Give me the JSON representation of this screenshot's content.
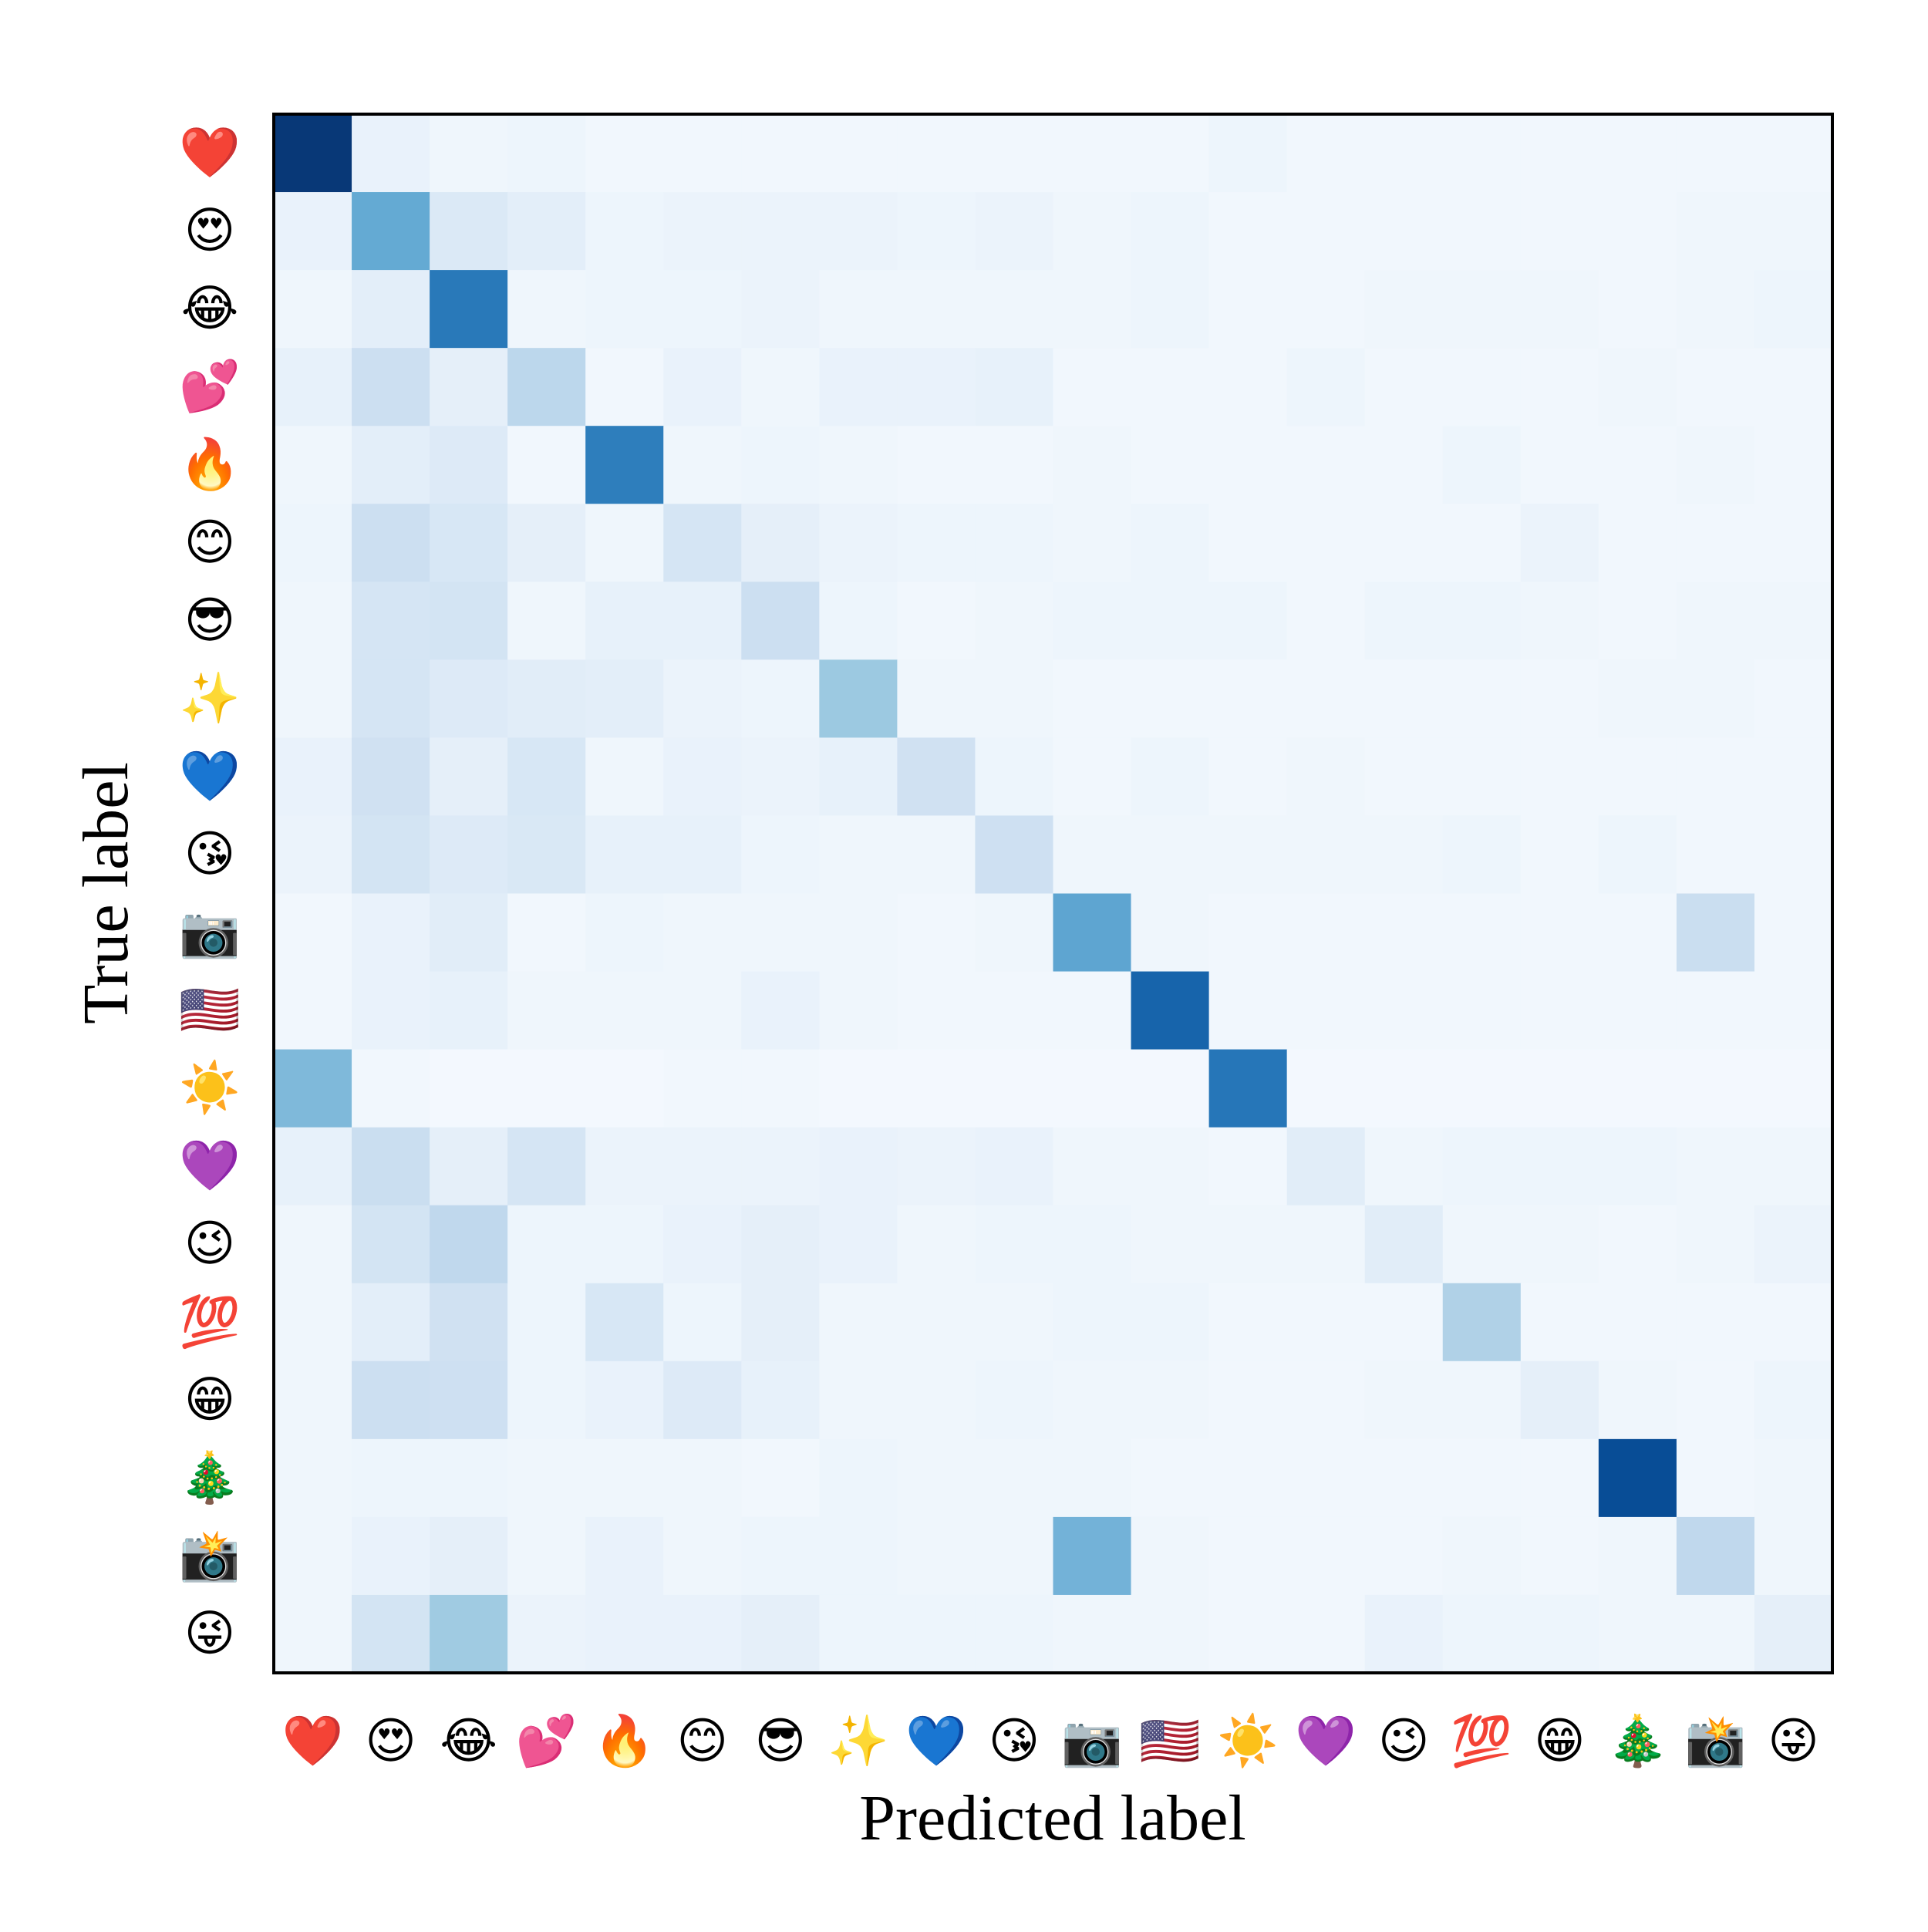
{
  "chart_data": {
    "type": "heatmap",
    "title": "",
    "xlabel": "Predicted label",
    "ylabel": "True label",
    "colormap": "Blues",
    "colormap_range": [
      0,
      1
    ],
    "colorbar": false,
    "grid": false,
    "categories": [
      "❤️",
      "😍",
      "😂",
      "💕",
      "🔥",
      "😊",
      "😎",
      "✨",
      "💙",
      "😘",
      "📷",
      "🇺🇸",
      "☀️",
      "💜",
      "😉",
      "💯",
      "😁",
      "🎄",
      "📸",
      "😜"
    ],
    "matrix": [
      [
        0.97,
        0.07,
        0.04,
        0.05,
        0.03,
        0.03,
        0.03,
        0.03,
        0.03,
        0.03,
        0.03,
        0.03,
        0.05,
        0.03,
        0.03,
        0.03,
        0.03,
        0.03,
        0.03,
        0.03
      ],
      [
        0.07,
        0.52,
        0.14,
        0.1,
        0.05,
        0.06,
        0.06,
        0.06,
        0.05,
        0.06,
        0.04,
        0.05,
        0.03,
        0.03,
        0.03,
        0.03,
        0.03,
        0.03,
        0.04,
        0.04
      ],
      [
        0.04,
        0.1,
        0.72,
        0.04,
        0.05,
        0.05,
        0.06,
        0.04,
        0.04,
        0.04,
        0.04,
        0.05,
        0.03,
        0.03,
        0.04,
        0.04,
        0.04,
        0.03,
        0.04,
        0.05
      ],
      [
        0.08,
        0.22,
        0.09,
        0.28,
        0.03,
        0.07,
        0.04,
        0.07,
        0.07,
        0.08,
        0.03,
        0.03,
        0.03,
        0.05,
        0.03,
        0.03,
        0.03,
        0.04,
        0.03,
        0.03
      ],
      [
        0.04,
        0.1,
        0.13,
        0.03,
        0.7,
        0.04,
        0.05,
        0.04,
        0.03,
        0.03,
        0.04,
        0.03,
        0.03,
        0.03,
        0.03,
        0.05,
        0.03,
        0.03,
        0.04,
        0.03
      ],
      [
        0.05,
        0.22,
        0.16,
        0.09,
        0.04,
        0.17,
        0.09,
        0.06,
        0.05,
        0.05,
        0.04,
        0.05,
        0.03,
        0.03,
        0.03,
        0.03,
        0.06,
        0.03,
        0.03,
        0.03
      ],
      [
        0.04,
        0.17,
        0.18,
        0.04,
        0.08,
        0.08,
        0.22,
        0.05,
        0.03,
        0.04,
        0.05,
        0.05,
        0.05,
        0.03,
        0.05,
        0.05,
        0.04,
        0.03,
        0.04,
        0.04
      ],
      [
        0.04,
        0.17,
        0.13,
        0.11,
        0.1,
        0.06,
        0.05,
        0.38,
        0.04,
        0.04,
        0.03,
        0.03,
        0.03,
        0.03,
        0.03,
        0.03,
        0.03,
        0.04,
        0.04,
        0.03
      ],
      [
        0.07,
        0.2,
        0.09,
        0.16,
        0.04,
        0.07,
        0.06,
        0.08,
        0.2,
        0.05,
        0.03,
        0.05,
        0.03,
        0.04,
        0.03,
        0.03,
        0.03,
        0.03,
        0.03,
        0.03
      ],
      [
        0.06,
        0.18,
        0.13,
        0.15,
        0.08,
        0.08,
        0.05,
        0.04,
        0.04,
        0.21,
        0.04,
        0.04,
        0.04,
        0.04,
        0.04,
        0.05,
        0.03,
        0.05,
        0.03,
        0.03
      ],
      [
        0.03,
        0.07,
        0.11,
        0.03,
        0.05,
        0.04,
        0.04,
        0.04,
        0.03,
        0.04,
        0.54,
        0.04,
        0.03,
        0.03,
        0.03,
        0.03,
        0.03,
        0.03,
        0.23,
        0.03
      ],
      [
        0.03,
        0.07,
        0.08,
        0.04,
        0.04,
        0.04,
        0.07,
        0.04,
        0.03,
        0.03,
        0.03,
        0.8,
        0.03,
        0.03,
        0.03,
        0.03,
        0.03,
        0.03,
        0.03,
        0.03
      ],
      [
        0.45,
        0.03,
        0.02,
        0.02,
        0.02,
        0.03,
        0.03,
        0.02,
        0.02,
        0.02,
        0.02,
        0.02,
        0.73,
        0.02,
        0.02,
        0.02,
        0.02,
        0.02,
        0.02,
        0.02
      ],
      [
        0.08,
        0.23,
        0.09,
        0.17,
        0.06,
        0.06,
        0.06,
        0.07,
        0.06,
        0.07,
        0.04,
        0.04,
        0.03,
        0.11,
        0.04,
        0.05,
        0.05,
        0.05,
        0.04,
        0.04
      ],
      [
        0.04,
        0.18,
        0.27,
        0.05,
        0.05,
        0.07,
        0.09,
        0.07,
        0.04,
        0.05,
        0.05,
        0.04,
        0.04,
        0.04,
        0.11,
        0.04,
        0.04,
        0.03,
        0.04,
        0.06
      ],
      [
        0.04,
        0.1,
        0.2,
        0.05,
        0.16,
        0.05,
        0.09,
        0.04,
        0.04,
        0.04,
        0.05,
        0.05,
        0.03,
        0.03,
        0.03,
        0.32,
        0.03,
        0.03,
        0.03,
        0.03
      ],
      [
        0.04,
        0.22,
        0.21,
        0.05,
        0.07,
        0.13,
        0.08,
        0.04,
        0.04,
        0.05,
        0.04,
        0.04,
        0.03,
        0.03,
        0.04,
        0.04,
        0.09,
        0.04,
        0.03,
        0.05
      ],
      [
        0.04,
        0.05,
        0.05,
        0.04,
        0.04,
        0.04,
        0.03,
        0.05,
        0.04,
        0.04,
        0.04,
        0.03,
        0.03,
        0.03,
        0.03,
        0.03,
        0.03,
        0.89,
        0.03,
        0.04
      ],
      [
        0.04,
        0.07,
        0.09,
        0.04,
        0.07,
        0.04,
        0.05,
        0.05,
        0.04,
        0.04,
        0.48,
        0.04,
        0.03,
        0.03,
        0.03,
        0.04,
        0.03,
        0.04,
        0.27,
        0.04
      ],
      [
        0.04,
        0.18,
        0.37,
        0.06,
        0.07,
        0.07,
        0.09,
        0.05,
        0.05,
        0.05,
        0.04,
        0.04,
        0.03,
        0.03,
        0.07,
        0.05,
        0.05,
        0.04,
        0.04,
        0.09
      ]
    ]
  }
}
